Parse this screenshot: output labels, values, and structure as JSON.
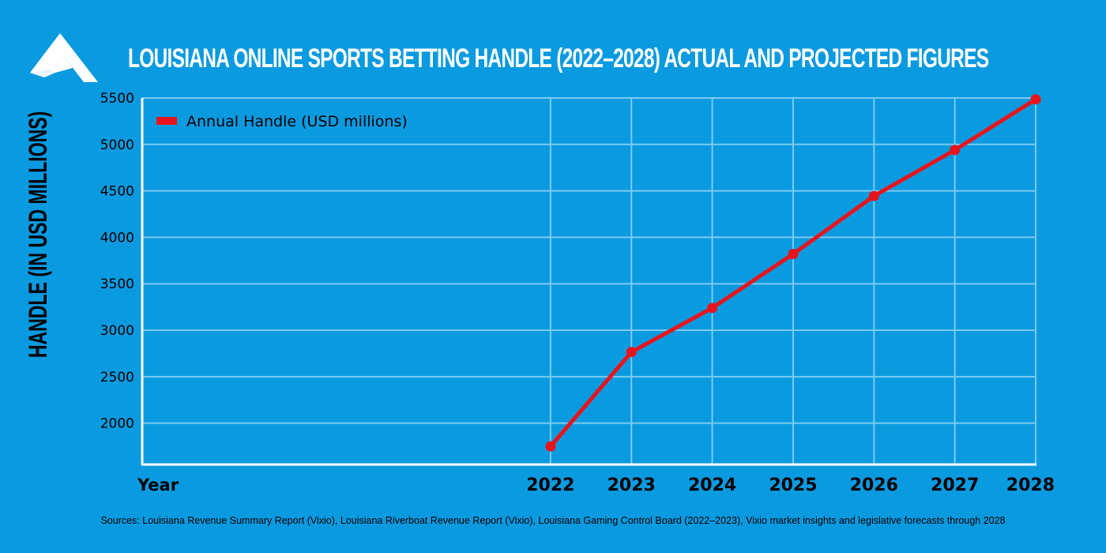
{
  "header": {
    "title": "LOUISIANA ONLINE SPORTS BETTING HANDLE (2022–2028) ACTUAL AND PROJECTED FIGURES",
    "logo_icon": "triangle-a-logo-icon"
  },
  "footer": {
    "sources": "Sources: Louisiana Revenue Summary Report (Vixio), Louisiana Riverboat Revenue Report (Vixio), Louisiana Gaming Control Board (2022–2023), Vixio market insights and legislative forecasts through 2028"
  },
  "colors": {
    "background": "#0a9ae0",
    "line": "#e8141c",
    "grid": "#7ccaf0",
    "axis": "#ffffff",
    "title": "#ffffff"
  },
  "chart_data": {
    "type": "line",
    "title": "LOUISIANA ONLINE SPORTS BETTING HANDLE (2022–2028) ACTUAL AND PROJECTED FIGURES",
    "xlabel": "Year",
    "ylabel": "HANDLE (IN USD MILLIONS)",
    "x": [
      2022,
      2023,
      2024,
      2025,
      2026,
      2027,
      2028
    ],
    "series": [
      {
        "name": "Annual Handle (USD millions)",
        "values": [
          1750,
          2765,
          3240,
          3820,
          4445,
          4940,
          5485
        ]
      }
    ],
    "yticks": [
      2000,
      2500,
      3000,
      3500,
      4000,
      4500,
      5000,
      5500
    ],
    "ylim": [
      1555,
      5500
    ],
    "xlim": [
      2016.95,
      2028
    ],
    "grid": true,
    "legend": "top-left"
  }
}
